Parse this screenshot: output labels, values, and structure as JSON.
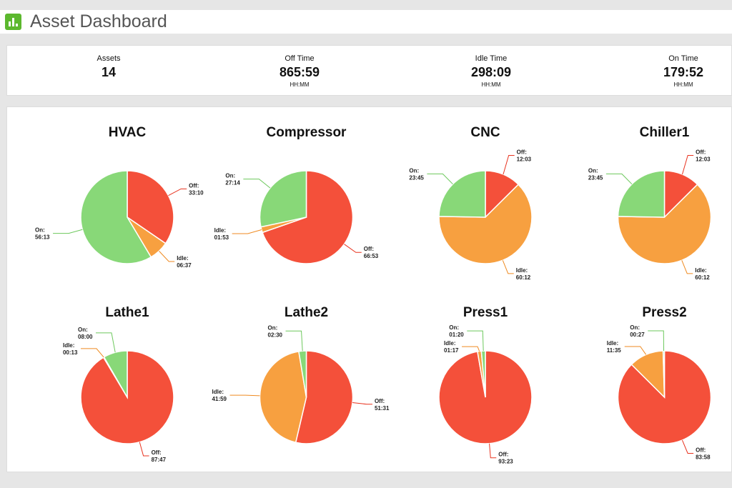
{
  "header": {
    "title": "Asset Dashboard",
    "icon": "bar-chart-icon"
  },
  "stats": [
    {
      "label": "Assets",
      "value": "14",
      "unit": ""
    },
    {
      "label": "Off Time",
      "value": "865:59",
      "unit": "HH:MM"
    },
    {
      "label": "Idle Time",
      "value": "298:09",
      "unit": "HH:MM"
    },
    {
      "label": "On Time",
      "value": "179:52",
      "unit": "HH:MM"
    }
  ],
  "colors": {
    "off": "#f4503a",
    "idle": "#f7a040",
    "on": "#88d878"
  },
  "chart_data": [
    {
      "type": "pie",
      "title": "HVAC",
      "slices": [
        {
          "label": "Off:",
          "value": "33:10"
        },
        {
          "label": "Idle:",
          "value": "06:37"
        },
        {
          "label": "On:",
          "value": "56:13"
        }
      ]
    },
    {
      "type": "pie",
      "title": "Compressor",
      "slices": [
        {
          "label": "Off:",
          "value": "66:53"
        },
        {
          "label": "Idle:",
          "value": "01:53"
        },
        {
          "label": "On:",
          "value": "27:14"
        }
      ]
    },
    {
      "type": "pie",
      "title": "CNC",
      "slices": [
        {
          "label": "Off:",
          "value": "12:03"
        },
        {
          "label": "Idle:",
          "value": "60:12"
        },
        {
          "label": "On:",
          "value": "23:45"
        }
      ]
    },
    {
      "type": "pie",
      "title": "Chiller1",
      "slices": [
        {
          "label": "Off:",
          "value": "12:03"
        },
        {
          "label": "Idle:",
          "value": "60:12"
        },
        {
          "label": "On:",
          "value": "23:45"
        }
      ]
    },
    {
      "type": "pie",
      "title": "Lathe1",
      "slices": [
        {
          "label": "Off:",
          "value": "87:47"
        },
        {
          "label": "Idle:",
          "value": "00:13"
        },
        {
          "label": "On:",
          "value": "08:00"
        }
      ]
    },
    {
      "type": "pie",
      "title": "Lathe2",
      "slices": [
        {
          "label": "Off:",
          "value": "51:31"
        },
        {
          "label": "Idle:",
          "value": "41:59"
        },
        {
          "label": "On:",
          "value": "02:30"
        }
      ]
    },
    {
      "type": "pie",
      "title": "Press1",
      "slices": [
        {
          "label": "Off:",
          "value": "93:23"
        },
        {
          "label": "Idle:",
          "value": "01:17"
        },
        {
          "label": "On:",
          "value": "01:20"
        }
      ]
    },
    {
      "type": "pie",
      "title": "Press2",
      "slices": [
        {
          "label": "Off:",
          "value": "83:58"
        },
        {
          "label": "Idle:",
          "value": "11:35"
        },
        {
          "label": "On:",
          "value": "00:27"
        }
      ]
    }
  ]
}
